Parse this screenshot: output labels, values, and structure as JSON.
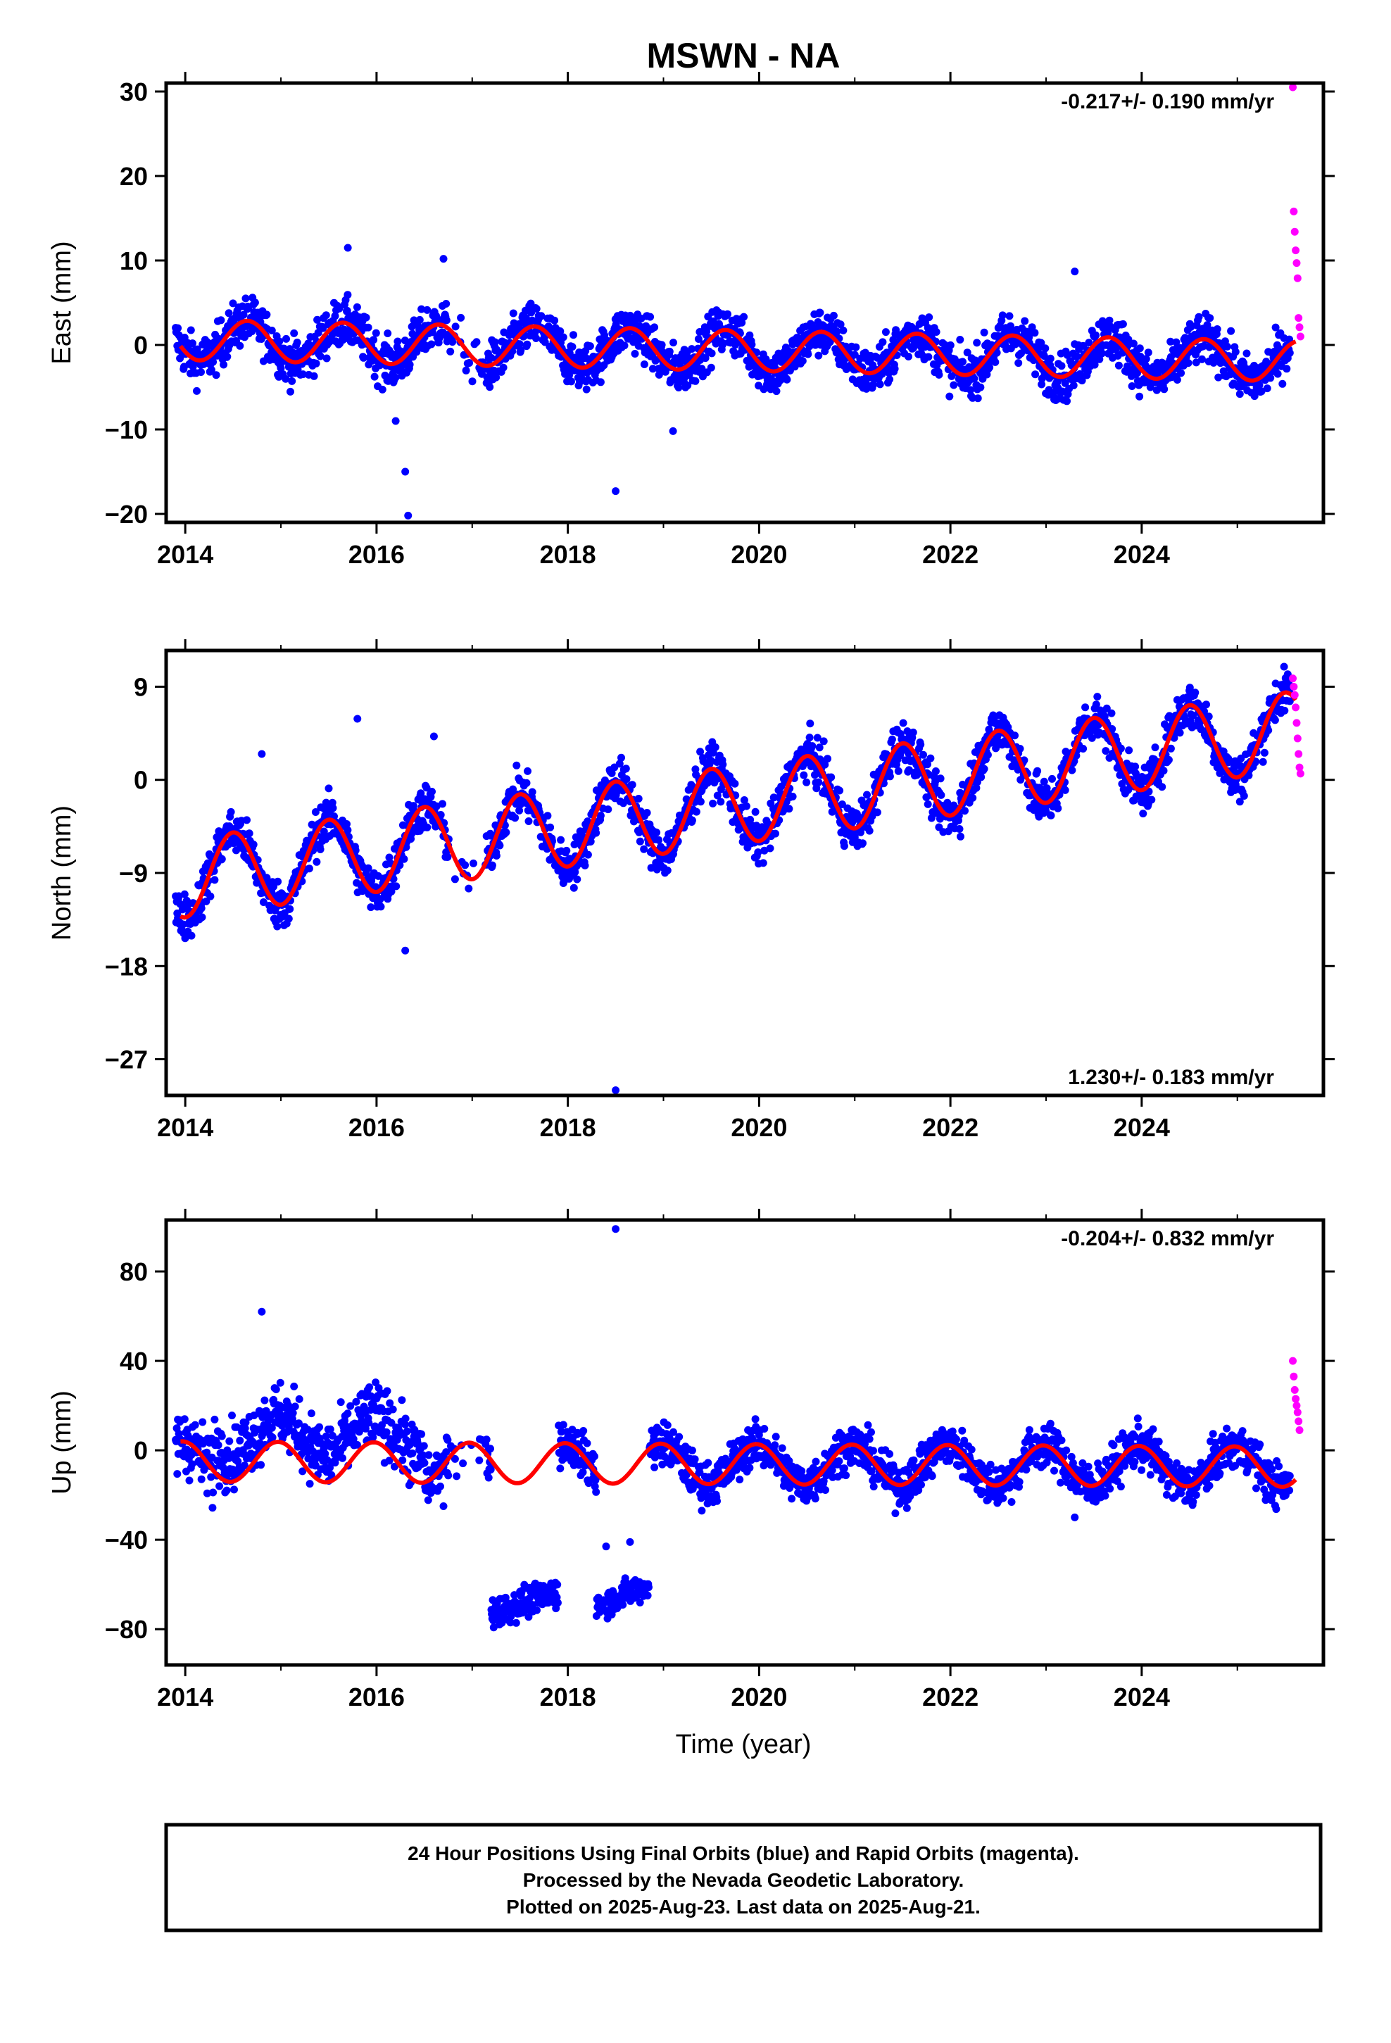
{
  "title": "MSWN - NA",
  "colors": {
    "final_orbits": "#0000ff",
    "rapid_orbits": "#ff00ff",
    "model_fit": "#ff0000",
    "frame": "#000000"
  },
  "chart_data": [
    {
      "type": "scatter",
      "component": "east",
      "ylabel": "East (mm)",
      "xlabel": "",
      "xlim": [
        2013.8,
        2025.9
      ],
      "ylim": [
        -21,
        31
      ],
      "x_ticks": [
        2014,
        2016,
        2018,
        2020,
        2022,
        2024
      ],
      "x_tick_labels": [
        "2014",
        "2016",
        "2018",
        "2020",
        "2022",
        "2024"
      ],
      "y_ticks": [
        30,
        20,
        10,
        0,
        -10,
        -20
      ],
      "y_tick_labels": [
        "30",
        "20",
        "10",
        "0",
        "−10",
        "−20"
      ],
      "rate_label": "-0.217+/- 0.190 mm/yr",
      "rate_position": "top-right",
      "model": {
        "offset": 0.6,
        "rate": -0.217,
        "amplitude": 2.4,
        "peak": 0.65
      },
      "series": [
        {
          "name": "Final Orbits (blue)",
          "x_range": [
            2013.9,
            2025.55
          ],
          "scatter": 2.0
        },
        {
          "name": "Rapid Orbits (magenta)",
          "x": [
            2025.58,
            2025.59,
            2025.6,
            2025.61,
            2025.62,
            2025.63,
            2025.64,
            2025.65,
            2025.66
          ],
          "y": [
            30.5,
            15.8,
            13.4,
            11.2,
            9.7,
            7.9,
            3.2,
            2.1,
            1.0
          ]
        }
      ],
      "outliers": [
        {
          "x": 2015.7,
          "y": 11.5
        },
        {
          "x": 2016.3,
          "y": -15.0
        },
        {
          "x": 2016.33,
          "y": -20.2
        },
        {
          "x": 2016.7,
          "y": 10.2
        },
        {
          "x": 2018.5,
          "y": -17.3
        },
        {
          "x": 2019.1,
          "y": -10.2
        },
        {
          "x": 2023.3,
          "y": 8.7
        },
        {
          "x": 2016.2,
          "y": -9.0
        }
      ]
    },
    {
      "type": "scatter",
      "component": "north",
      "ylabel": "North (mm)",
      "xlabel": "",
      "xlim": [
        2013.8,
        2025.9
      ],
      "ylim": [
        -30.5,
        12.5
      ],
      "x_ticks": [
        2014,
        2016,
        2018,
        2020,
        2022,
        2024
      ],
      "x_tick_labels": [
        "2014",
        "2016",
        "2018",
        "2020",
        "2022",
        "2024"
      ],
      "y_ticks": [
        9,
        0,
        -9,
        -18,
        -27
      ],
      "y_tick_labels": [
        "9",
        "0",
        "−9",
        "−18",
        "−27"
      ],
      "rate_label": "1.230+/- 0.183 mm/yr",
      "rate_position": "bottom-right",
      "model": {
        "offset": -9.5,
        "rate": 1.23,
        "amplitude": 3.8,
        "peak": 0.5
      },
      "series": [
        {
          "name": "Final Orbits (blue)",
          "x_range": [
            2013.9,
            2025.55
          ],
          "scatter": 1.6
        },
        {
          "name": "Rapid Orbits (magenta)",
          "x": [
            2025.58,
            2025.59,
            2025.6,
            2025.61,
            2025.62,
            2025.63,
            2025.64,
            2025.65,
            2025.66
          ],
          "y": [
            9.8,
            9.0,
            8.2,
            7.0,
            5.5,
            4.0,
            2.5,
            1.2,
            0.6
          ]
        }
      ],
      "outliers": [
        {
          "x": 2015.8,
          "y": 5.9
        },
        {
          "x": 2016.3,
          "y": -16.5
        },
        {
          "x": 2018.5,
          "y": -30.0
        },
        {
          "x": 2014.8,
          "y": 2.5
        },
        {
          "x": 2016.6,
          "y": 4.2
        }
      ]
    },
    {
      "type": "scatter",
      "component": "up",
      "ylabel": "Up (mm)",
      "xlabel": "Time (year)",
      "xlim": [
        2013.8,
        2025.9
      ],
      "ylim": [
        -96,
        103
      ],
      "x_ticks": [
        2014,
        2016,
        2018,
        2020,
        2022,
        2024
      ],
      "x_tick_labels": [
        "2014",
        "2016",
        "2018",
        "2020",
        "2022",
        "2024"
      ],
      "y_ticks": [
        80,
        40,
        0,
        -40,
        -80
      ],
      "y_tick_labels": [
        "80",
        "40",
        "0",
        "−40",
        "−80"
      ],
      "rate_label": "-0.204+/- 0.832 mm/yr",
      "rate_position": "top-right",
      "model": {
        "offset": -5,
        "rate": -0.204,
        "amplitude": 9,
        "peak": 0.97
      },
      "series": [
        {
          "name": "Final Orbits (blue)",
          "x_range": [
            2013.9,
            2025.55
          ],
          "scatter": 7.0
        },
        {
          "name": "Rapid Orbits (magenta)",
          "x": [
            2025.58,
            2025.59,
            2025.6,
            2025.61,
            2025.62,
            2025.63,
            2025.64,
            2025.65
          ],
          "y": [
            40,
            33,
            27,
            23,
            20,
            17,
            13,
            9
          ]
        }
      ],
      "offset_segments": [
        {
          "x_range": [
            2017.2,
            2017.9
          ],
          "y_center": -68,
          "spread": 8
        },
        {
          "x_range": [
            2018.3,
            2018.85
          ],
          "y_center": -65,
          "spread": 7
        }
      ],
      "outliers": [
        {
          "x": 2014.8,
          "y": 62
        },
        {
          "x": 2018.5,
          "y": 99
        },
        {
          "x": 2016.7,
          "y": -25
        },
        {
          "x": 2023.3,
          "y": -30
        },
        {
          "x": 2018.4,
          "y": -43
        },
        {
          "x": 2018.65,
          "y": -41
        }
      ]
    }
  ],
  "footer": {
    "line1": "24 Hour Positions Using Final Orbits (blue) and Rapid Orbits (magenta).",
    "line2": "Processed by the Nevada Geodetic Laboratory.",
    "line3": "Plotted on 2025-Aug-23. Last data on 2025-Aug-21."
  }
}
